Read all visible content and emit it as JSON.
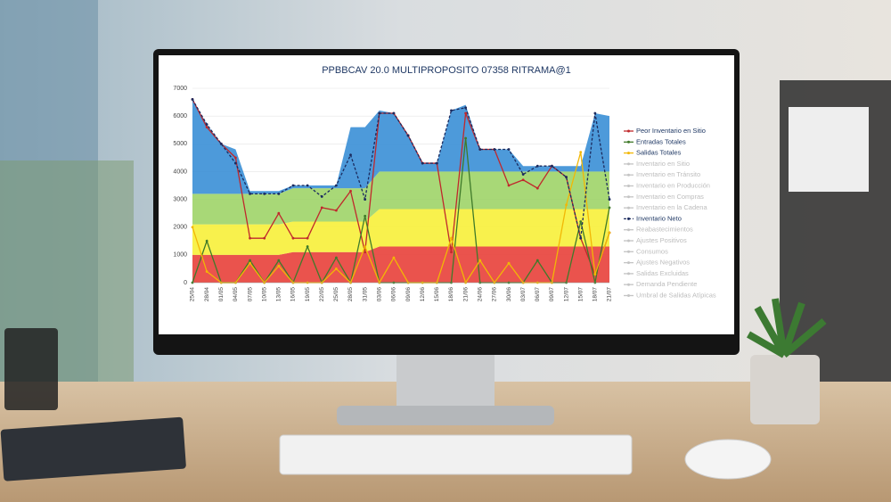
{
  "chart_data": {
    "type": "line",
    "title": "PPBBCAV 20.0 MULTIPROPOSITO 07358 RITRAMA@1",
    "categories": [
      "25/04",
      "28/04",
      "01/05",
      "04/05",
      "07/05",
      "10/05",
      "13/05",
      "16/05",
      "19/05",
      "22/05",
      "25/05",
      "28/05",
      "31/05",
      "03/06",
      "06/06",
      "09/06",
      "12/06",
      "15/06",
      "18/06",
      "21/06",
      "24/06",
      "27/06",
      "30/06",
      "03/07",
      "06/07",
      "09/07",
      "12/07",
      "15/07",
      "18/07",
      "21/07"
    ],
    "ylim": [
      0,
      7000
    ],
    "yticks": [
      0,
      1000,
      2000,
      3000,
      4000,
      5000,
      6000,
      7000
    ],
    "areas": [
      {
        "color": "#e8403a",
        "values": [
          1000,
          1000,
          1000,
          1000,
          1000,
          1000,
          1000,
          1100,
          1100,
          1100,
          1100,
          1100,
          1100,
          1300,
          1300,
          1300,
          1300,
          1300,
          1300,
          1300,
          1300,
          1300,
          1300,
          1300,
          1300,
          1300,
          1300,
          1300,
          1300,
          1300
        ]
      },
      {
        "color": "#f7f03a",
        "values": [
          1100,
          1100,
          1100,
          1100,
          1100,
          1100,
          1100,
          1100,
          1100,
          1100,
          1100,
          1100,
          1100,
          1350,
          1350,
          1350,
          1350,
          1350,
          1350,
          1350,
          1350,
          1350,
          1350,
          1350,
          1350,
          1350,
          1350,
          1350,
          1350,
          1350
        ]
      },
      {
        "color": "#9fd468",
        "values": [
          1100,
          1100,
          1100,
          1100,
          1100,
          1100,
          1100,
          1200,
          1200,
          1200,
          1200,
          1200,
          1200,
          1350,
          1350,
          1350,
          1350,
          1350,
          1350,
          1350,
          1350,
          1350,
          1350,
          1350,
          1350,
          1350,
          1350,
          1350,
          1350,
          1350
        ]
      },
      {
        "color": "#3a8fd6",
        "values": [
          3400,
          2500,
          1800,
          1600,
          100,
          100,
          100,
          100,
          100,
          100,
          100,
          2200,
          2200,
          2200,
          2100,
          1300,
          300,
          300,
          2200,
          2400,
          800,
          800,
          800,
          200,
          200,
          200,
          200,
          200,
          2100,
          2000
        ]
      }
    ],
    "series": [
      {
        "name": "Peor Inventario en Sitio",
        "color": "#c0282c",
        "values": [
          6600,
          5600,
          5000,
          4500,
          1600,
          1600,
          2500,
          1600,
          1600,
          2700,
          2600,
          3300,
          1100,
          6100,
          6100,
          5300,
          4300,
          4300,
          1100,
          6100,
          4800,
          4800,
          3500,
          3700,
          3400,
          4200,
          3800,
          1600,
          300,
          1800
        ]
      },
      {
        "name": "Entradas Totales",
        "color": "#3f7a2a",
        "values": [
          0,
          1500,
          0,
          0,
          800,
          0,
          800,
          0,
          1300,
          0,
          900,
          0,
          2400,
          0,
          0,
          0,
          0,
          0,
          0,
          5200,
          0,
          0,
          0,
          0,
          800,
          0,
          0,
          2200,
          0,
          2700
        ]
      },
      {
        "name": "Salidas Totales",
        "color": "#f2b705",
        "values": [
          2000,
          400,
          0,
          0,
          700,
          0,
          600,
          0,
          0,
          0,
          500,
          0,
          1300,
          0,
          900,
          0,
          0,
          0,
          1600,
          0,
          800,
          0,
          700,
          0,
          0,
          0,
          2800,
          4700,
          300,
          1800
        ]
      },
      {
        "name": "Inventario en Sitio",
        "hidden": true
      },
      {
        "name": "Inventario en Tránsito",
        "hidden": true
      },
      {
        "name": "Inventario en Producción",
        "hidden": true
      },
      {
        "name": "Inventario en Compras",
        "hidden": true
      },
      {
        "name": "Inventario en la Cadena",
        "hidden": true
      },
      {
        "name": "Inventario Neto",
        "color": "#1b2a5e",
        "dashed": true,
        "values": [
          6600,
          5700,
          5000,
          4300,
          3200,
          3200,
          3200,
          3500,
          3500,
          3100,
          3500,
          4600,
          3000,
          6100,
          6100,
          5300,
          4300,
          4300,
          6200,
          6300,
          4800,
          4800,
          4800,
          3900,
          4200,
          4200,
          3800,
          1600,
          6100,
          3000
        ]
      },
      {
        "name": "Reabastecimientos",
        "hidden": true
      },
      {
        "name": "Ajustes Positivos",
        "hidden": true
      },
      {
        "name": "Consumos",
        "hidden": true
      },
      {
        "name": "Ajustes Negativos",
        "hidden": true
      },
      {
        "name": "Salidas Excluidas",
        "hidden": true
      },
      {
        "name": "Demanda Pendiente",
        "hidden": true
      },
      {
        "name": "Umbral de Salidas Atípicas",
        "hidden": true
      }
    ]
  }
}
